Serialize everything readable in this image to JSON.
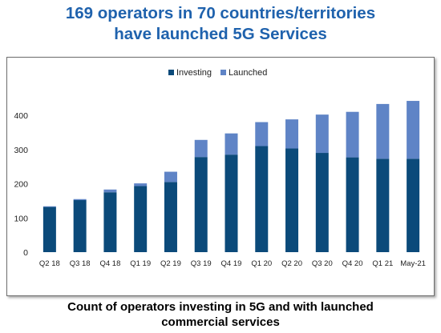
{
  "headline": {
    "line1": "169 operators in 70 countries/territories",
    "line2": "have launched 5G Services"
  },
  "caption": {
    "line1": "Count of operators investing in 5G and with launched",
    "line2": "commercial services"
  },
  "colors": {
    "investing": "#0b4a7a",
    "launched": "#5f84c6",
    "headline": "#1f62ad"
  },
  "chart_data": {
    "type": "bar",
    "stacked": true,
    "categories": [
      "Q2 18",
      "Q3 18",
      "Q4 18",
      "Q1 19",
      "Q2 19",
      "Q3 19",
      "Q4 19",
      "Q1 20",
      "Q2 20",
      "Q3 20",
      "Q4 20",
      "Q1 21",
      "May-21"
    ],
    "series": [
      {
        "name": "Investing",
        "values": [
          132,
          152,
          175,
          193,
          205,
          278,
          285,
          310,
          303,
          290,
          277,
          273,
          273
        ]
      },
      {
        "name": "Launched",
        "values": [
          2,
          3,
          8,
          8,
          30,
          50,
          62,
          70,
          85,
          112,
          133,
          160,
          169
        ]
      }
    ],
    "yticks": [
      0,
      100,
      200,
      300,
      400
    ],
    "ylim": [
      0,
      480
    ],
    "grid": false,
    "legend_position": "top"
  }
}
